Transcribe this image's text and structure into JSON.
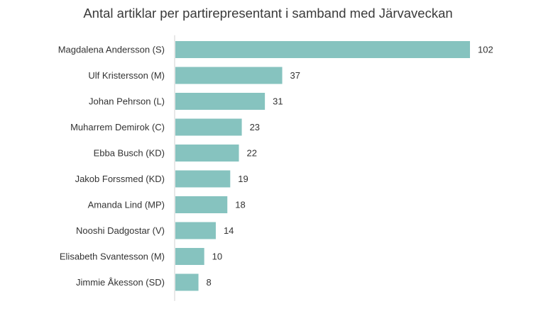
{
  "chart_data": {
    "type": "bar",
    "orientation": "horizontal",
    "title": "Antal artiklar per partirepresentant i samband med Järvaveckan",
    "categories": [
      "Magdalena Andersson (S)",
      "Ulf Kristersson (M)",
      "Johan Pehrson (L)",
      "Muharrem Demirok (C)",
      "Ebba Busch (KD)",
      "Jakob Forssmed (KD)",
      "Amanda Lind (MP)",
      "Nooshi Dadgostar (V)",
      "Elisabeth Svantesson (M)",
      "Jimmie Åkesson (SD)"
    ],
    "values": [
      102,
      37,
      31,
      23,
      22,
      19,
      18,
      14,
      10,
      8
    ],
    "xlabel": "",
    "ylabel": "",
    "xlim": [
      0,
      102
    ],
    "grid": false,
    "legend": "none",
    "bar_color": "#86c3bf",
    "axis_color": "#d0d0d0"
  }
}
